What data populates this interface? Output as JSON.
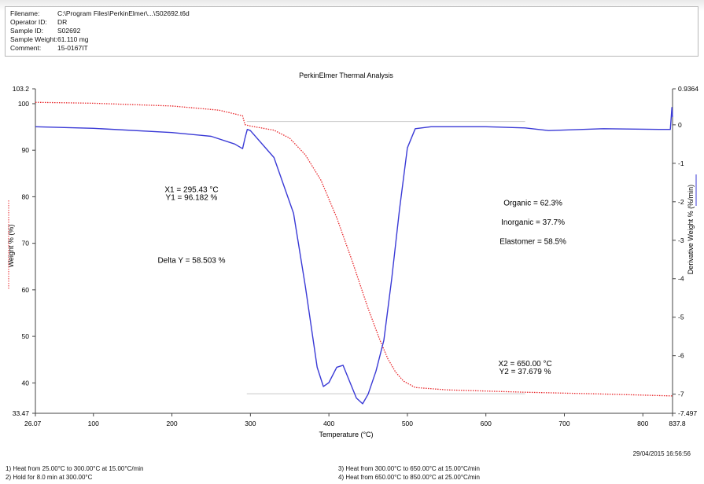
{
  "header": {
    "rows": [
      {
        "key": "Filename:",
        "value": "C:\\Program Files\\PerkinElmer\\...\\S02692.t6d"
      },
      {
        "key": "Operator ID:",
        "value": "DR"
      },
      {
        "key": "Sample ID:",
        "value": "S02692"
      },
      {
        "key": "Sample Weight:",
        "value": "61.110 mg"
      },
      {
        "key": "Comment:",
        "value": "15-0167IT"
      }
    ]
  },
  "chart_data": {
    "type": "line",
    "title": "PerkinElmer Thermal Analysis",
    "xlabel": "Temperature (°C)",
    "ylabel_left": "Weight % (%)",
    "ylabel_right": "Derivative Weight % (%/min)",
    "xlim": [
      26.07,
      837.8
    ],
    "ylim_left": [
      33.47,
      103.2
    ],
    "ylim_right": [
      -7.497,
      0.9364
    ],
    "x_ticks": [
      "26.07",
      "100",
      "200",
      "300",
      "400",
      "500",
      "600",
      "700",
      "800",
      "837.8"
    ],
    "x_tick_values": [
      26.07,
      100,
      200,
      300,
      400,
      500,
      600,
      700,
      800,
      837.8
    ],
    "y_left_ticks": [
      "33.47",
      "40",
      "50",
      "60",
      "70",
      "80",
      "90",
      "100",
      "103.2"
    ],
    "y_left_tick_values": [
      33.47,
      40,
      50,
      60,
      70,
      80,
      90,
      100,
      103.2
    ],
    "y_right_ticks": [
      "-7.497",
      "-7",
      "-6",
      "-5",
      "-4",
      "-3",
      "-2",
      "-1",
      "0",
      "0.9364"
    ],
    "y_right_tick_values": [
      -7.497,
      -7,
      -6,
      -5,
      -4,
      -3,
      -2,
      -1,
      0,
      0.9364
    ],
    "series": [
      {
        "axis": "left",
        "color": "#e8262a",
        "style": "dotted",
        "x": [
          26.07,
          100,
          200,
          260,
          290,
          293,
          300,
          330,
          350,
          370,
          390,
          410,
          430,
          450,
          465,
          475,
          485,
          495,
          510,
          550,
          650,
          750,
          837.8
        ],
        "y": [
          100.3,
          100.1,
          99.5,
          98.6,
          97.4,
          95.5,
          95.2,
          94.3,
          92.6,
          89.0,
          83.5,
          75.5,
          66.0,
          56.0,
          49.2,
          45.2,
          42.3,
          40.4,
          39.0,
          38.5,
          38.0,
          37.6,
          37.2
        ]
      },
      {
        "axis": "right",
        "color": "#3a3ad6",
        "style": "solid",
        "x": [
          26.07,
          100,
          200,
          250,
          280,
          290,
          293,
          296,
          300,
          330,
          355,
          370,
          385,
          393,
          400,
          410,
          418,
          425,
          435,
          443,
          450,
          460,
          470,
          480,
          490,
          500,
          510,
          530,
          600,
          650,
          680,
          750,
          820,
          835,
          837,
          837.8
        ],
        "y": [
          -0.05,
          -0.09,
          -0.2,
          -0.3,
          -0.5,
          -0.62,
          -0.35,
          -0.12,
          -0.15,
          -0.85,
          -2.3,
          -4.2,
          -6.3,
          -6.8,
          -6.7,
          -6.3,
          -6.25,
          -6.6,
          -7.1,
          -7.25,
          -7.0,
          -6.4,
          -5.6,
          -4.0,
          -2.2,
          -0.6,
          -0.1,
          -0.05,
          -0.05,
          -0.08,
          -0.15,
          -0.1,
          -0.12,
          -0.12,
          0.45,
          0.2
        ]
      }
    ],
    "annotations": [
      {
        "text": "X1 = 295.43 °C",
        "x": 225,
        "y": 81.0
      },
      {
        "text": "Y1 = 96.182 %",
        "x": 225,
        "y": 79.3
      },
      {
        "text": "Delta Y = 58.503 %",
        "x": 225,
        "y": 65.8
      },
      {
        "text": "Organic = 62.3%",
        "x": 660,
        "y": -2.1
      },
      {
        "text": "Inorganic = 37.7%",
        "x": 660,
        "y": -2.6
      },
      {
        "text": "Elastomer = 58.5%",
        "x": 660,
        "y": -3.1
      },
      {
        "text": "X2 = 650.00 °C",
        "x": 650,
        "y": 43.6
      },
      {
        "text": "Y2 = 37.679 %",
        "x": 650,
        "y": 41.9
      }
    ],
    "markers": [
      {
        "label": "upper",
        "x1": 295.43,
        "x2": 650,
        "y": 96.182
      },
      {
        "label": "lower",
        "x1": 295.43,
        "x2": 650,
        "y": 37.679
      }
    ]
  },
  "footer": {
    "timestamp": "29/04/2015 16:56:56",
    "steps": [
      "1)   Heat from 25.00°C to 300.00°C at 15.00°C/min",
      "2)   Hold for 8.0 min at 300.00°C",
      "3)   Heat from 300.00°C to 650.00°C at 15.00°C/min",
      "4)   Heat from 650.00°C to 850.00°C at 25.00°C/min"
    ]
  }
}
